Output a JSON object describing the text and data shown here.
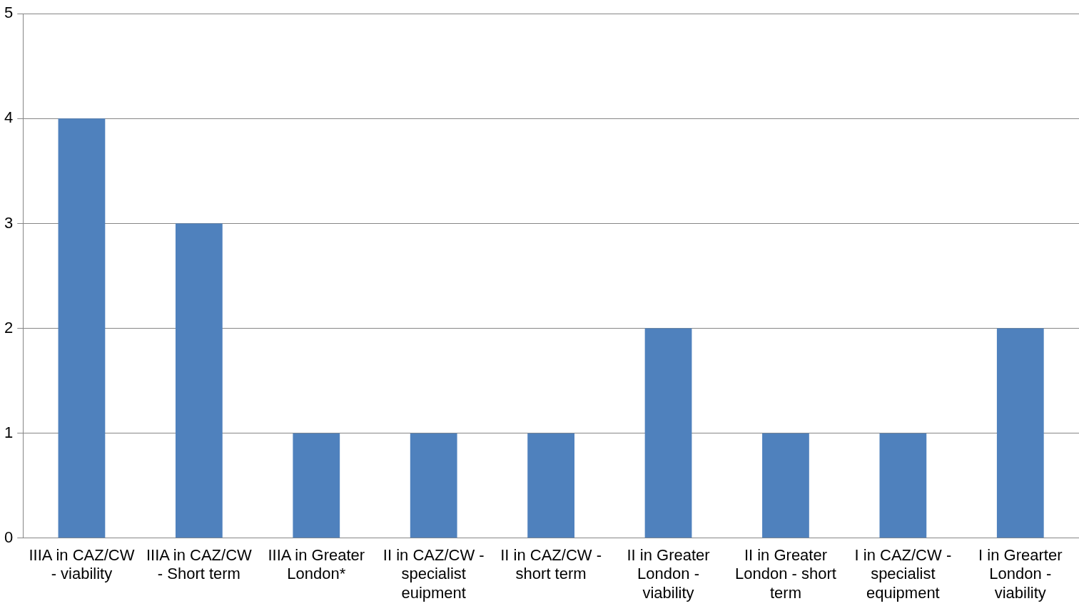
{
  "chart_data": {
    "type": "bar",
    "categories": [
      "IIIA in CAZ/CW - viability",
      "IIIA in CAZ/CW - Short term",
      "IIIA in Greater London*",
      "II in CAZ/CW - specialist euipment",
      "II in CAZ/CW - short term",
      "II in Greater London - viability",
      "II in Greater London - short term",
      "I in CAZ/CW - specialist equipment",
      "I in Grearter London - viability"
    ],
    "values": [
      4,
      3,
      1,
      1,
      1,
      2,
      1,
      1,
      2
    ],
    "color": "#4f81bd",
    "ylim": [
      0,
      5
    ],
    "yticks": [
      0,
      1,
      2,
      3,
      4,
      5
    ],
    "grid": "y",
    "legend": false
  }
}
